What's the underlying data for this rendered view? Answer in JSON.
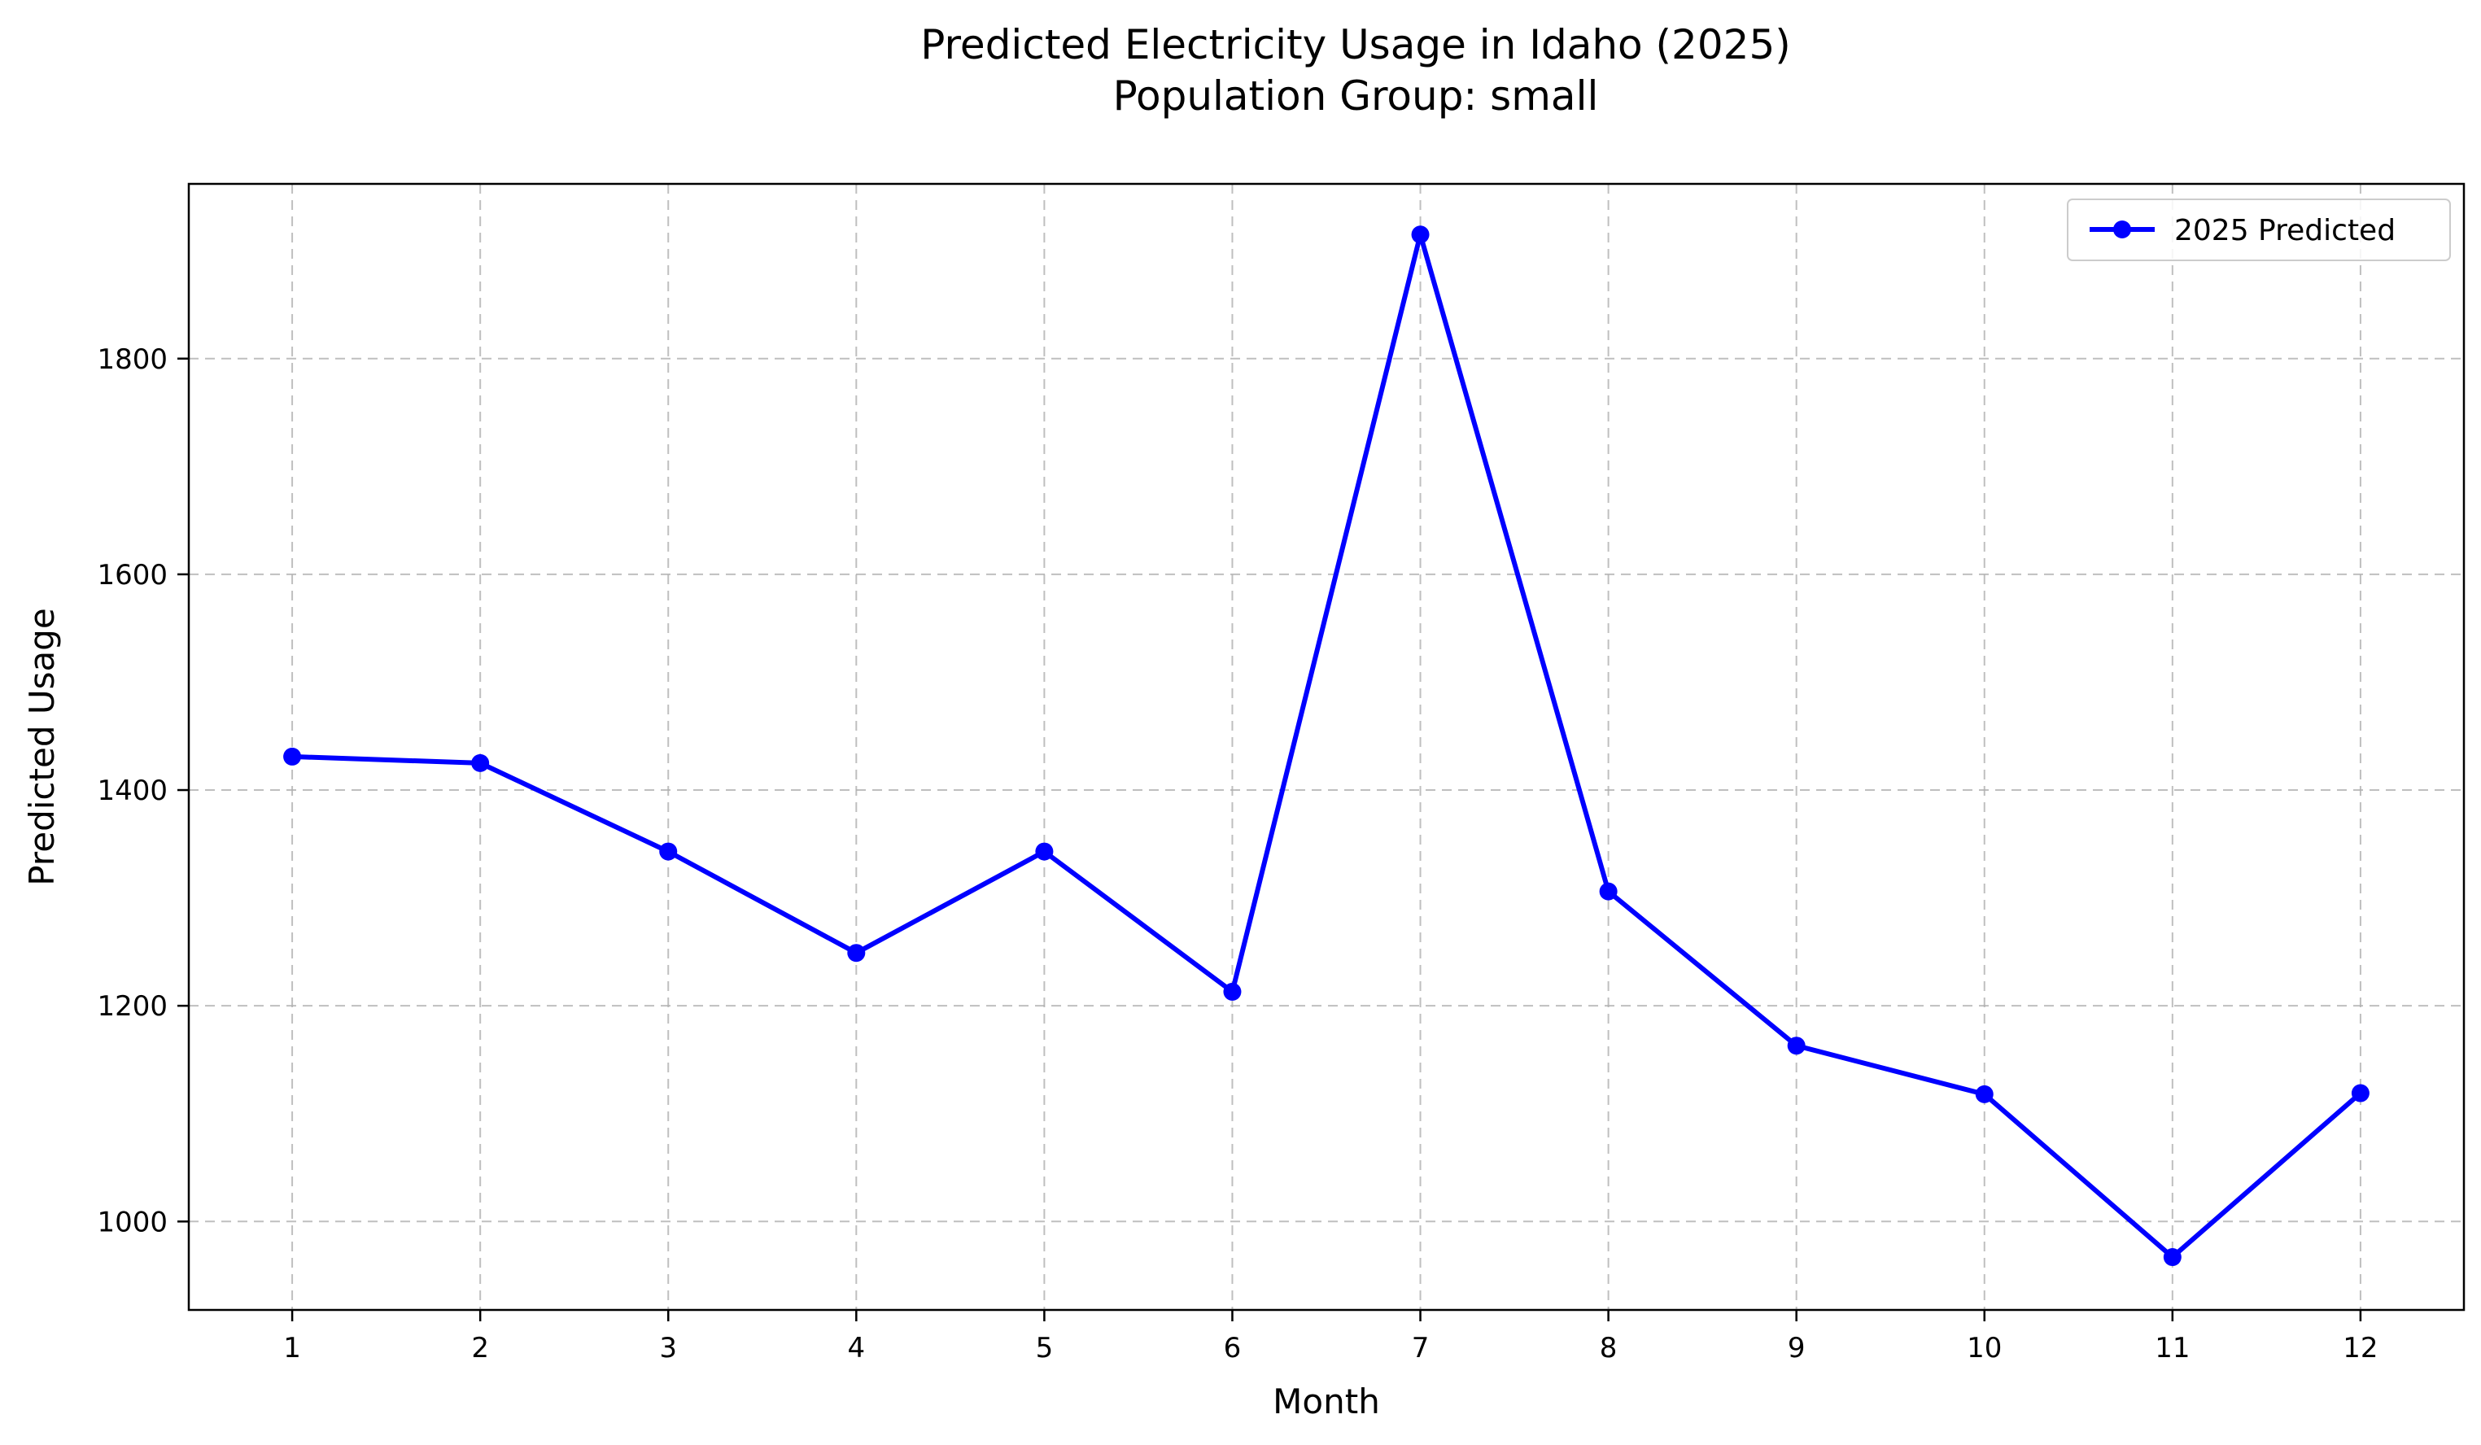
{
  "chart_data": {
    "type": "line",
    "title": "Predicted Electricity Usage in Idaho (2025)",
    "subtitle": "Population Group: small",
    "xlabel": "Month",
    "ylabel": "Predicted Usage",
    "x": [
      1,
      2,
      3,
      4,
      5,
      6,
      7,
      8,
      9,
      10,
      11,
      12
    ],
    "xticks": [
      "1",
      "2",
      "3",
      "4",
      "5",
      "6",
      "7",
      "8",
      "9",
      "10",
      "11",
      "12"
    ],
    "yticks": [
      1000,
      1200,
      1400,
      1600,
      1800
    ],
    "xlim": [
      0.45,
      12.55
    ],
    "ylim": [
      918,
      1962
    ],
    "grid": true,
    "legend": "upper right",
    "series": [
      {
        "name": "2025 Predicted",
        "color": "#0000ff",
        "marker": "circle",
        "values": [
          1431,
          1425,
          1343,
          1249,
          1343,
          1213,
          1915,
          1306,
          1163,
          1118,
          967,
          1119
        ]
      }
    ]
  }
}
